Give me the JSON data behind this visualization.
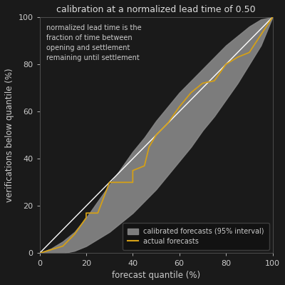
{
  "title": "calibration at a normalized lead time of 0.50",
  "xlabel": "forecast quantile (%)",
  "ylabel": "verifications below quantile (%)",
  "annotation": "normalized lead time is the\nfraction of time between\nopening and settlement\nremaining until settlement",
  "bg_color": "#1a1a1a",
  "plot_bg_color": "#1a1a1a",
  "text_color": "#cccccc",
  "title_color": "#dddddd",
  "band_color": "#888888",
  "band_alpha": 0.9,
  "diag_color": "#ffffff",
  "actual_color": "#d4a017",
  "xticks": [
    0,
    20,
    40,
    60,
    80,
    100
  ],
  "yticks": [
    0,
    20,
    40,
    60,
    80,
    100
  ],
  "xlim": [
    0,
    100
  ],
  "ylim": [
    0,
    100
  ],
  "band_x": [
    0,
    5,
    10,
    15,
    20,
    25,
    30,
    35,
    40,
    45,
    50,
    55,
    60,
    65,
    70,
    75,
    80,
    85,
    90,
    95,
    100
  ],
  "band_lower": [
    0,
    0,
    0,
    1,
    3,
    6,
    9,
    13,
    17,
    22,
    27,
    33,
    39,
    45,
    52,
    58,
    65,
    72,
    80,
    88,
    100
  ],
  "band_upper": [
    0,
    2,
    5,
    9,
    15,
    22,
    29,
    36,
    43,
    49,
    56,
    62,
    68,
    73,
    78,
    83,
    88,
    92,
    96,
    99,
    100
  ],
  "actual_x": [
    0,
    10,
    15,
    20,
    20,
    25,
    30,
    40,
    40,
    45,
    47,
    50,
    55,
    60,
    65,
    70,
    75,
    80,
    85,
    90,
    100
  ],
  "actual_y": [
    0,
    3,
    8,
    15,
    17,
    17,
    30,
    30,
    35,
    37,
    45,
    50,
    55,
    62,
    68,
    72,
    73,
    80,
    83,
    85,
    100
  ]
}
